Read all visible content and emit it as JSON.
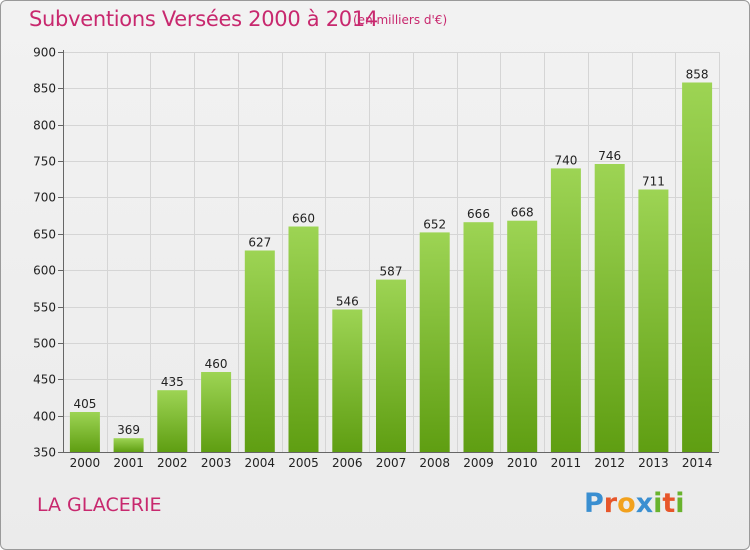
{
  "title": "Subventions Versées 2000 à 2014",
  "subtitle": "(en milliers d'€)",
  "commune": "LA GLACERIE",
  "logo": {
    "p": "P",
    "r": "r",
    "o": "o",
    "x": "x",
    "i": "i",
    "t": "t",
    "i2": "i"
  },
  "colors": {
    "title": "#c8286e",
    "bar_top": "#9dd454",
    "bar_bottom": "#5f9e12",
    "grid": "#d5d5d5"
  },
  "chart_data": {
    "type": "bar",
    "categories": [
      "2000",
      "2001",
      "2002",
      "2003",
      "2004",
      "2005",
      "2006",
      "2007",
      "2008",
      "2009",
      "2010",
      "2011",
      "2012",
      "2013",
      "2014"
    ],
    "values": [
      405,
      369,
      435,
      460,
      627,
      660,
      546,
      587,
      652,
      666,
      668,
      740,
      746,
      711,
      858
    ],
    "data_labels": [
      "405",
      "369",
      "435",
      "460",
      "627",
      "660",
      "546",
      "587",
      "652",
      "666",
      "668",
      "740",
      "746",
      "711",
      "858"
    ],
    "ylim": [
      350,
      900
    ],
    "yticks": [
      350,
      400,
      450,
      500,
      550,
      600,
      650,
      700,
      750,
      800,
      850,
      900
    ],
    "grid": true
  }
}
